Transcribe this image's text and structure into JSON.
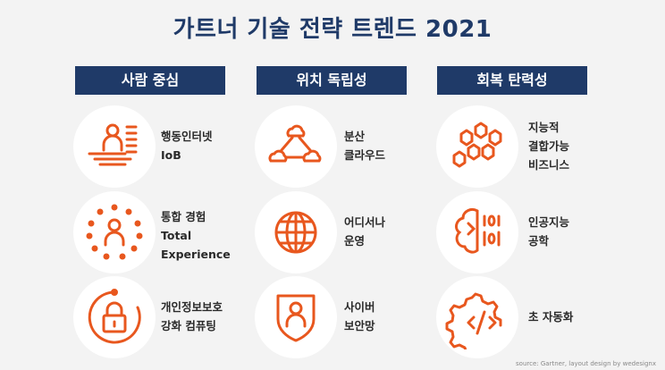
{
  "title": "가트너 기술 전략 트렌드 2021",
  "columns": [
    {
      "header": "사람 중심",
      "items": [
        {
          "icon": "person-at-desk-icon",
          "lines": [
            "행동인터넷",
            "IoB"
          ]
        },
        {
          "icon": "person-dotted-circle-icon",
          "lines": [
            "통합 경험",
            "Total",
            "Experience"
          ]
        },
        {
          "icon": "padlock-circle-icon",
          "lines": [
            "개인정보보호",
            "강화 컴퓨팅"
          ]
        }
      ]
    },
    {
      "header": "위치 독립성",
      "items": [
        {
          "icon": "cloud-network-icon",
          "lines": [
            "분산",
            "클라우드"
          ]
        },
        {
          "icon": "globe-icon",
          "lines": [
            "어디서나",
            "운영"
          ]
        },
        {
          "icon": "person-shield-icon",
          "lines": [
            "사이버",
            "보안망"
          ]
        }
      ]
    },
    {
      "header": "회복 탄력성",
      "items": [
        {
          "icon": "hexagon-cluster-icon",
          "lines": [
            "지능적",
            "결합가능",
            "비즈니스"
          ]
        },
        {
          "icon": "brain-circuit-icon",
          "lines": [
            "인공지능",
            "공학"
          ]
        },
        {
          "icon": "gear-code-icon",
          "lines": [
            "초 자동화"
          ]
        }
      ]
    }
  ],
  "source": "source: Gartner, layout design by wedesignx",
  "colors": {
    "accent": "#e8571e",
    "header_bg": "#1f3a68",
    "background": "#f3f3f3"
  }
}
